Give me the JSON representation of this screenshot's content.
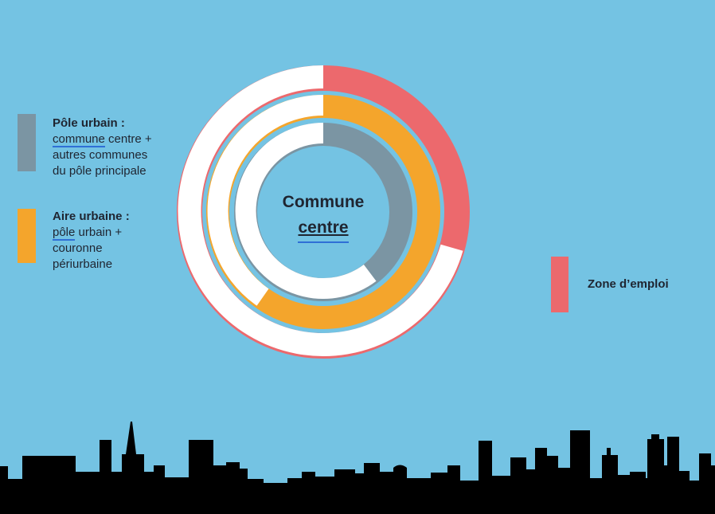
{
  "colors": {
    "background": "#74C3E3",
    "ring_pole_urbain": "#7B95A3",
    "ring_aire_urbaine": "#F4A52C",
    "ring_zone_emploi": "#EC696D",
    "ring_remainder": "#FFFFFF",
    "text": "#1F2531",
    "spellcheck_underline": "#2F6FD6",
    "skyline": "#000000"
  },
  "diagram": {
    "center_label": {
      "line1": "Commune",
      "line2": "centre"
    },
    "rings": [
      {
        "name": "zone-emploi",
        "color_key": "ring_zone_emploi",
        "sweep_deg": 106
      },
      {
        "name": "aire-urbaine",
        "color_key": "ring_aire_urbaine",
        "sweep_deg": 215
      },
      {
        "name": "pole-urbain",
        "color_key": "ring_pole_urbain",
        "sweep_deg": 143
      }
    ]
  },
  "legends": {
    "pole_urbain": {
      "title": "Pôle urbain :",
      "line2_word": "commune",
      "line2_rest": " centre +",
      "line3": "autres communes",
      "line4": "du pôle principale"
    },
    "aire_urbaine": {
      "title": "Aire urbaine :",
      "line2_word": "pôle",
      "line2_rest": " urbain +",
      "line3": "couronne",
      "line4": "périurbaine"
    },
    "zone_emploi": {
      "label": "Zone d’emploi"
    }
  }
}
